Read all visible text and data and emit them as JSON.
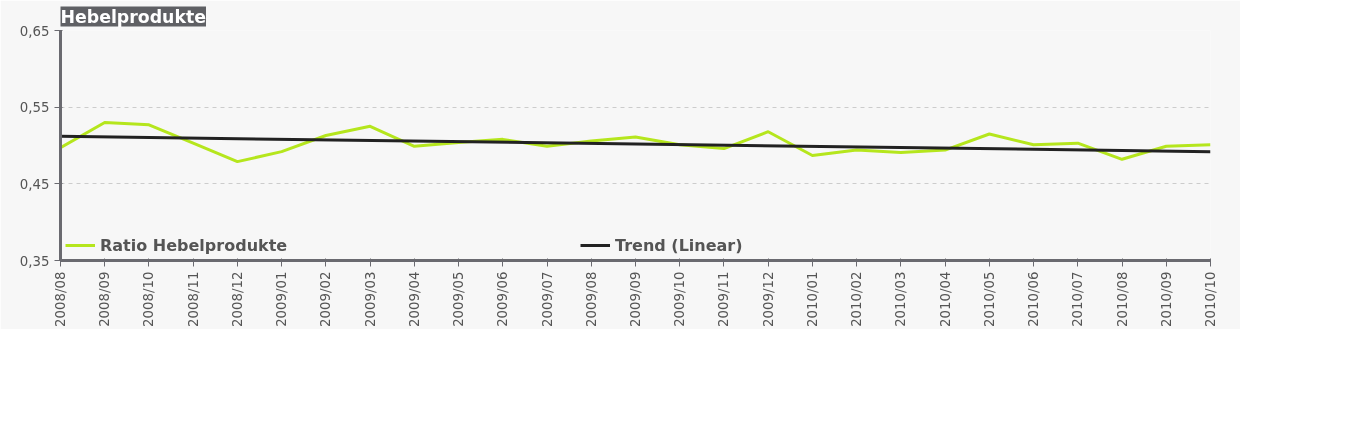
{
  "chart_data": {
    "type": "line",
    "title": "Hebelprodukte",
    "categories": [
      "2008/08",
      "2008/09",
      "2008/10",
      "2008/11",
      "2008/12",
      "2009/01",
      "2009/02",
      "2009/03",
      "2009/04",
      "2009/05",
      "2009/06",
      "2009/07",
      "2009/08",
      "2009/09",
      "2009/10",
      "2009/11",
      "2009/12",
      "2010/01",
      "2010/02",
      "2010/03",
      "2010/04",
      "2010/05",
      "2010/06",
      "2010/07",
      "2010/08",
      "2010/09",
      "2010/10"
    ],
    "series": [
      {
        "name": "Ratio Hebelprodukte",
        "color": "#b5e61d",
        "values": [
          0.497,
          0.53,
          0.527,
          0.503,
          0.479,
          0.492,
          0.513,
          0.525,
          0.499,
          0.504,
          0.508,
          0.499,
          0.506,
          0.511,
          0.501,
          0.496,
          0.518,
          0.487,
          0.494,
          0.491,
          0.494,
          0.515,
          0.501,
          0.503,
          0.482,
          0.499,
          0.501
        ]
      },
      {
        "name": "Trend (Linear)",
        "color": "#222222",
        "x": [
          "2008/08",
          "2010/10"
        ],
        "values": [
          0.512,
          0.492
        ]
      }
    ],
    "ylim": [
      0.35,
      0.65
    ],
    "yticks": [
      {
        "value": 0.35,
        "label": "0,35"
      },
      {
        "value": 0.45,
        "label": "0,45"
      },
      {
        "value": 0.55,
        "label": "0,55"
      },
      {
        "value": 0.65,
        "label": "0,65"
      }
    ],
    "grid": "y",
    "legend": "bottom",
    "line_style": "solid"
  }
}
